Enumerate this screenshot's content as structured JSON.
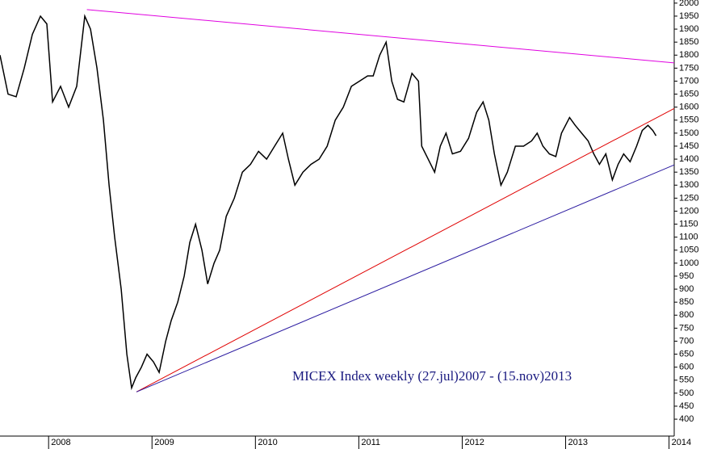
{
  "chart_data": {
    "type": "line",
    "annotation": "MICEX Index weekly (27.jul)2007 - (15.nov)2013",
    "xlim": [
      2007.53,
      2014.05
    ],
    "ylim": [
      335,
      2012
    ],
    "xticks": [
      2008,
      2009,
      2010,
      2011,
      2012,
      2013,
      2014
    ],
    "yticks": [
      400,
      450,
      500,
      550,
      600,
      650,
      700,
      750,
      800,
      850,
      900,
      950,
      1000,
      1050,
      1100,
      1150,
      1200,
      1250,
      1300,
      1350,
      1400,
      1450,
      1500,
      1550,
      1600,
      1650,
      1700,
      1750,
      1800,
      1850,
      1900,
      1950,
      2000
    ],
    "series": [
      {
        "color": "#000000",
        "width": 1.5,
        "x": [
          2007.53,
          2007.608,
          2007.686,
          2007.764,
          2007.843,
          2007.921,
          2007.983,
          2008.038,
          2008.116,
          2008.194,
          2008.272,
          2008.35,
          2008.405,
          2008.468,
          2008.53,
          2008.585,
          2008.639,
          2008.702,
          2008.757,
          2008.803,
          2008.843,
          2008.897,
          2008.952,
          2009.014,
          2009.069,
          2009.132,
          2009.186,
          2009.249,
          2009.311,
          2009.366,
          2009.421,
          2009.483,
          2009.538,
          2009.6,
          2009.655,
          2009.718,
          2009.796,
          2009.874,
          2009.952,
          2010.03,
          2010.108,
          2010.186,
          2010.264,
          2010.319,
          2010.382,
          2010.46,
          2010.538,
          2010.616,
          2010.694,
          2010.772,
          2010.85,
          2010.928,
          2011.006,
          2011.085,
          2011.139,
          2011.202,
          2011.264,
          2011.319,
          2011.374,
          2011.436,
          2011.514,
          2011.577,
          2011.608,
          2011.671,
          2011.733,
          2011.788,
          2011.843,
          2011.905,
          2011.983,
          2012.061,
          2012.139,
          2012.202,
          2012.257,
          2012.311,
          2012.374,
          2012.436,
          2012.514,
          2012.593,
          2012.671,
          2012.725,
          2012.78,
          2012.843,
          2012.905,
          2012.96,
          2013.038,
          2013.093,
          2013.155,
          2013.218,
          2013.272,
          2013.327,
          2013.389,
          2013.452,
          2013.507,
          2013.561,
          2013.624,
          2013.686,
          2013.741,
          2013.796,
          2013.843,
          2013.874
        ],
        "values": [
          1800,
          1650,
          1640,
          1750,
          1880,
          1950,
          1920,
          1620,
          1680,
          1600,
          1680,
          1950,
          1900,
          1750,
          1550,
          1300,
          1100,
          900,
          650,
          520,
          560,
          600,
          650,
          620,
          580,
          700,
          780,
          850,
          950,
          1080,
          1150,
          1050,
          920,
          1000,
          1050,
          1180,
          1250,
          1350,
          1380,
          1430,
          1400,
          1450,
          1500,
          1400,
          1300,
          1350,
          1380,
          1400,
          1450,
          1550,
          1600,
          1680,
          1700,
          1720,
          1720,
          1800,
          1850,
          1700,
          1630,
          1620,
          1730,
          1700,
          1450,
          1400,
          1350,
          1450,
          1500,
          1420,
          1430,
          1480,
          1580,
          1620,
          1550,
          1420,
          1300,
          1350,
          1450,
          1450,
          1470,
          1500,
          1450,
          1420,
          1410,
          1500,
          1560,
          1530,
          1500,
          1470,
          1420,
          1380,
          1420,
          1320,
          1380,
          1420,
          1390,
          1450,
          1510,
          1530,
          1510,
          1490
        ]
      },
      {
        "color": "#e000e0",
        "width": 1,
        "x": [
          2008.37,
          2014.05
        ],
        "values": [
          1975,
          1770
        ]
      },
      {
        "color": "#e00000",
        "width": 1,
        "x": [
          2008.85,
          2014.05
        ],
        "values": [
          505,
          1595
        ]
      },
      {
        "color": "#2a1aa0",
        "width": 1,
        "x": [
          2008.85,
          2014.05
        ],
        "values": [
          505,
          1378
        ]
      }
    ]
  }
}
